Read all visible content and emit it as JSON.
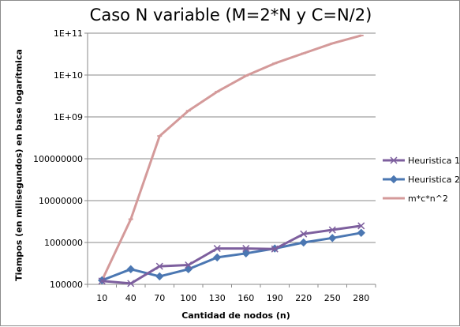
{
  "chart_data": {
    "type": "line",
    "title": "Caso N variable (M=2*N y C=N/2)",
    "xlabel": "Cantidad de nodos (n)",
    "ylabel": "Tiempos (en milisegundos) en base logarítmica",
    "yscale": "log",
    "ylim": [
      100000,
      100000000000
    ],
    "ytick_labels": [
      "100000",
      "1000000",
      "10000000",
      "100000000",
      "1E+09",
      "1E+10",
      "1E+11"
    ],
    "grid": "horizontal",
    "legend_position": "right",
    "categories": [
      "10",
      "40",
      "70",
      "100",
      "130",
      "160",
      "190",
      "220",
      "250",
      "280"
    ],
    "series": [
      {
        "name": "Heuristica 1",
        "color": "#7d5f9e",
        "marker": "x",
        "values": [
          120000,
          105000,
          270000,
          290000,
          720000,
          720000,
          700000,
          1600000,
          2000000,
          2500000
        ]
      },
      {
        "name": "Heuristica 2",
        "color": "#4b77b2",
        "marker": "diamond",
        "values": [
          125000,
          230000,
          155000,
          230000,
          440000,
          550000,
          720000,
          1000000,
          1280000,
          1700000
        ]
      },
      {
        "name": "m*c*n^2",
        "color": "#d49a9a",
        "marker": "dash",
        "values": [
          125000,
          3600000,
          350000000,
          1400000000,
          4000000000,
          9600000000,
          19000000000,
          33000000000,
          57000000000,
          88000000000
        ]
      }
    ]
  }
}
